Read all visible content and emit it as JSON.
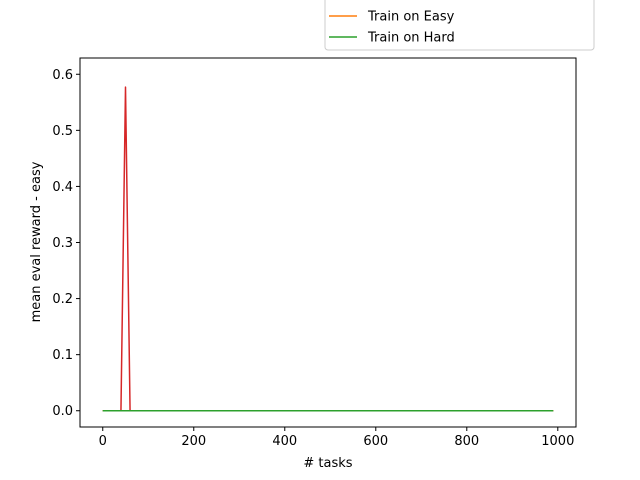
{
  "chart_data": {
    "type": "line",
    "title": "",
    "xlabel": "# tasks",
    "ylabel": "mean eval reward - easy",
    "xlim": [
      -50,
      1040
    ],
    "ylim": [
      -0.029,
      0.629
    ],
    "x_ticks": [
      0,
      200,
      400,
      600,
      800,
      1000
    ],
    "x_tick_labels": [
      "0",
      "200",
      "400",
      "600",
      "800",
      "1000"
    ],
    "y_ticks": [
      0.0,
      0.1,
      0.2,
      0.3,
      0.4,
      0.5,
      0.6
    ],
    "y_tick_labels": [
      "0.0",
      "0.1",
      "0.2",
      "0.3",
      "0.4",
      "0.5",
      "0.6"
    ],
    "grid": false,
    "legend_placement": "top-right, above the plot area (partially clipped)",
    "legend": [
      {
        "label": "Train on Easy",
        "color": "#ff7f0e"
      },
      {
        "label": "Train on Hard",
        "color": "#2ca02c"
      }
    ],
    "series": [
      {
        "color": "#1f77b4",
        "x": [
          0,
          990
        ],
        "y": [
          0.0,
          0.0
        ]
      },
      {
        "color": "#d62728",
        "x": [
          0,
          40,
          50,
          60,
          990
        ],
        "y": [
          0.0,
          0.0,
          0.577,
          0.0,
          0.0
        ]
      },
      {
        "name": "Train on Easy",
        "color": "#ff7f0e",
        "x": [
          0,
          990
        ],
        "y": [
          0.0,
          0.0
        ]
      },
      {
        "name": "Train on Hard",
        "color": "#2ca02c",
        "x": [
          0,
          990
        ],
        "y": [
          0.0,
          0.0
        ]
      }
    ]
  }
}
